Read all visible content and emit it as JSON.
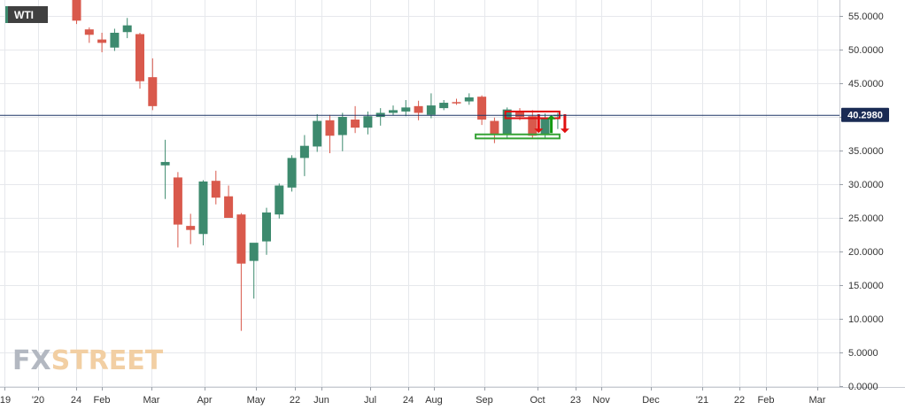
{
  "chart_data": {
    "type": "candlestick",
    "symbol": "WTI",
    "last_price": "40.2980",
    "y_axis": {
      "range": [
        0,
        57
      ],
      "ticks": [
        "0.0000",
        "5.0000",
        "10.0000",
        "15.0000",
        "20.0000",
        "25.0000",
        "30.0000",
        "35.0000",
        "40.0000",
        "45.0000",
        "50.0000",
        "55.0000"
      ]
    },
    "x_axis": {
      "labels": [
        "'19",
        "'20",
        "24",
        "Feb",
        "Mar",
        "Apr",
        "May",
        "22",
        "Jun",
        "Jul",
        "24",
        "Aug",
        "Sep",
        "Oct",
        "23",
        "Nov",
        "Dec",
        "'21",
        "22",
        "Feb",
        "Mar"
      ]
    },
    "candles": [
      {
        "o": 59.2,
        "h": 62.0,
        "l": 53.8,
        "c": 54.3
      },
      {
        "o": 53.0,
        "h": 53.3,
        "l": 51.0,
        "c": 52.2
      },
      {
        "o": 51.5,
        "h": 52.5,
        "l": 49.6,
        "c": 51.0
      },
      {
        "o": 50.3,
        "h": 53.1,
        "l": 49.8,
        "c": 52.5
      },
      {
        "o": 52.6,
        "h": 54.7,
        "l": 51.7,
        "c": 53.6
      },
      {
        "o": 52.3,
        "h": 52.5,
        "l": 44.2,
        "c": 45.3
      },
      {
        "o": 45.9,
        "h": 48.7,
        "l": 41.0,
        "c": 41.6
      },
      {
        "o": 32.8,
        "h": 36.6,
        "l": 27.8,
        "c": 33.3
      },
      {
        "o": 31.0,
        "h": 31.8,
        "l": 20.6,
        "c": 24.0
      },
      {
        "o": 23.8,
        "h": 25.6,
        "l": 21.1,
        "c": 23.2
      },
      {
        "o": 22.6,
        "h": 30.6,
        "l": 20.9,
        "c": 30.4
      },
      {
        "o": 30.5,
        "h": 32.0,
        "l": 27.0,
        "c": 28.0
      },
      {
        "o": 28.2,
        "h": 29.8,
        "l": 25.0,
        "c": 25.0
      },
      {
        "o": 25.5,
        "h": 25.7,
        "l": 8.2,
        "c": 18.2
      },
      {
        "o": 18.6,
        "h": 21.1,
        "l": 13.0,
        "c": 21.3
      },
      {
        "o": 21.5,
        "h": 26.5,
        "l": 19.5,
        "c": 25.8
      },
      {
        "o": 25.5,
        "h": 30.1,
        "l": 24.9,
        "c": 29.8
      },
      {
        "o": 29.5,
        "h": 34.3,
        "l": 28.9,
        "c": 33.9
      },
      {
        "o": 33.9,
        "h": 37.3,
        "l": 31.2,
        "c": 35.7
      },
      {
        "o": 35.6,
        "h": 40.4,
        "l": 34.8,
        "c": 39.4
      },
      {
        "o": 39.5,
        "h": 40.3,
        "l": 34.6,
        "c": 37.2
      },
      {
        "o": 37.3,
        "h": 40.6,
        "l": 34.9,
        "c": 40.0
      },
      {
        "o": 39.6,
        "h": 41.6,
        "l": 37.6,
        "c": 38.4
      },
      {
        "o": 38.4,
        "h": 40.8,
        "l": 37.4,
        "c": 40.1
      },
      {
        "o": 40.0,
        "h": 41.3,
        "l": 38.7,
        "c": 40.6
      },
      {
        "o": 40.6,
        "h": 41.7,
        "l": 40.2,
        "c": 41.0
      },
      {
        "o": 40.8,
        "h": 42.5,
        "l": 40.1,
        "c": 41.4
      },
      {
        "o": 41.6,
        "h": 42.4,
        "l": 39.5,
        "c": 40.6
      },
      {
        "o": 40.3,
        "h": 43.5,
        "l": 39.8,
        "c": 41.7
      },
      {
        "o": 41.3,
        "h": 42.5,
        "l": 41.0,
        "c": 42.1
      },
      {
        "o": 42.2,
        "h": 42.7,
        "l": 41.8,
        "c": 42.1
      },
      {
        "o": 42.3,
        "h": 43.5,
        "l": 41.8,
        "c": 42.9
      },
      {
        "o": 43.0,
        "h": 43.2,
        "l": 38.8,
        "c": 39.6
      },
      {
        "o": 39.4,
        "h": 39.9,
        "l": 36.1,
        "c": 37.3
      },
      {
        "o": 37.4,
        "h": 41.4,
        "l": 36.9,
        "c": 41.1
      },
      {
        "o": 40.9,
        "h": 41.3,
        "l": 39.5,
        "c": 40.0
      },
      {
        "o": 40.1,
        "h": 41.0,
        "l": 36.8,
        "c": 37.2
      },
      {
        "o": 37.3,
        "h": 40.5,
        "l": 36.7,
        "c": 39.8
      },
      {
        "o": 40.1,
        "h": 40.6,
        "l": 38.2,
        "c": 40.3
      }
    ],
    "annotations": {
      "resistance": [
        39.8,
        40.8
      ],
      "support": [
        36.8,
        37.4
      ]
    }
  },
  "colors": {
    "up": "#3d8a6e",
    "down": "#d9594c",
    "grid": "#e6e8ec",
    "price_line": "#1f3566",
    "price_label": "#1a2b54",
    "symbol_bg": "#404040",
    "green_box": "#36a336",
    "red_box": "#e01010",
    "arrow_green": "#129a12",
    "arrow_red": "#e01010"
  },
  "logo": {
    "fx": "FX",
    "street": "STREET"
  }
}
